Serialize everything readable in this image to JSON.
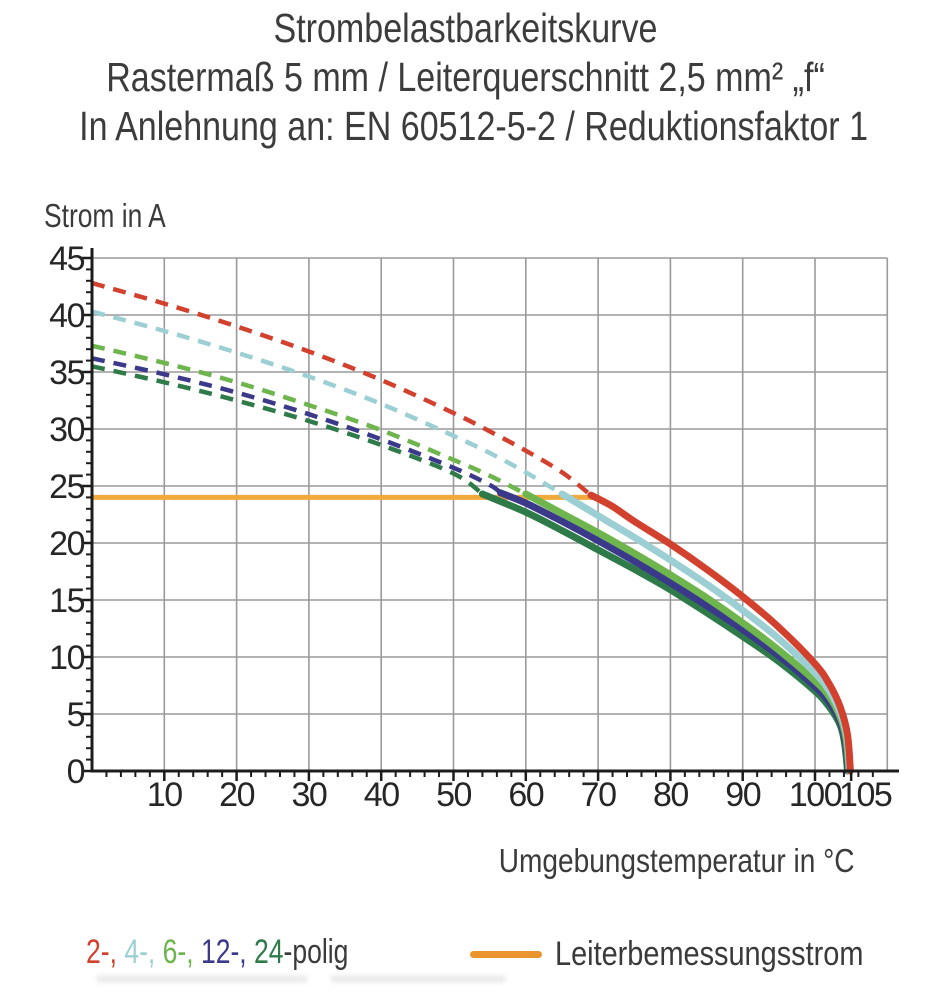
{
  "title": {
    "line1": "Strombelastbarkeitskurve",
    "line2": "Rastermaß 5 mm / Leiterquerschnitt 2,5 mm² „f“",
    "line3": "In Anlehnung an: EN 60512-5-2 / Reduktionsfaktor 1"
  },
  "chart_data": {
    "type": "line",
    "title": "Strombelastbarkeitskurve",
    "ylabel": "Strom in A",
    "xlabel": "Umgebungstemperatur in °C",
    "xlim": [
      0,
      110
    ],
    "ylim": [
      0,
      45
    ],
    "xticks": [
      10,
      20,
      30,
      40,
      50,
      60,
      70,
      80,
      90,
      100,
      105
    ],
    "yticks": [
      0,
      5,
      10,
      15,
      20,
      25,
      30,
      35,
      40,
      45
    ],
    "x_minor_step": 2,
    "y_minor_step": 1,
    "grid": true,
    "grid_color": "#9a9a9a",
    "axis_color": "#1c1c1c",
    "tick_label_color": "#262626",
    "rated_current_line": {
      "label": "Leiterbemessungsstrom",
      "value_A": 24,
      "x_start_C": 0,
      "x_end_C": 70,
      "color": "#f2a93b"
    },
    "series": [
      {
        "name": "24-polig",
        "color": "#2f7a49",
        "style": "dashed-then-solid",
        "solid_from_C": 54,
        "points": [
          [
            0,
            35.5
          ],
          [
            10,
            34.1
          ],
          [
            20,
            32.5
          ],
          [
            30,
            30.7
          ],
          [
            40,
            28.6
          ],
          [
            50,
            26.1
          ],
          [
            54,
            24.3
          ],
          [
            60,
            22.7
          ],
          [
            65,
            21.1
          ],
          [
            70,
            19.4
          ],
          [
            75,
            17.7
          ],
          [
            80,
            15.9
          ],
          [
            85,
            13.9
          ],
          [
            90,
            11.8
          ],
          [
            95,
            9.6
          ],
          [
            100,
            7.0
          ],
          [
            102,
            5.6
          ],
          [
            103.5,
            4.0
          ],
          [
            104.1,
            2.4
          ],
          [
            104.5,
            0
          ]
        ]
      },
      {
        "name": "12-polig",
        "color": "#3b3a8a",
        "style": "dashed-then-solid",
        "solid_from_C": 56.5,
        "points": [
          [
            0,
            36.2
          ],
          [
            10,
            34.8
          ],
          [
            20,
            33.2
          ],
          [
            30,
            31.3
          ],
          [
            40,
            29.1
          ],
          [
            50,
            26.6
          ],
          [
            55,
            25.1
          ],
          [
            56.5,
            24.4
          ],
          [
            60,
            23.5
          ],
          [
            65,
            21.9
          ],
          [
            70,
            20.2
          ],
          [
            75,
            18.4
          ],
          [
            80,
            16.5
          ],
          [
            85,
            14.5
          ],
          [
            90,
            12.4
          ],
          [
            95,
            10.1
          ],
          [
            100,
            7.4
          ],
          [
            102,
            6.0
          ],
          [
            103.5,
            4.3
          ],
          [
            104.2,
            2.6
          ],
          [
            104.6,
            0
          ]
        ]
      },
      {
        "name": "6-polig",
        "color": "#6db54c",
        "style": "dashed-then-solid",
        "solid_from_C": 60,
        "points": [
          [
            0,
            37.3
          ],
          [
            10,
            35.8
          ],
          [
            20,
            34.1
          ],
          [
            30,
            32.1
          ],
          [
            40,
            29.9
          ],
          [
            50,
            27.3
          ],
          [
            55,
            25.9
          ],
          [
            60,
            24.3
          ],
          [
            65,
            22.6
          ],
          [
            70,
            20.9
          ],
          [
            75,
            19.1
          ],
          [
            80,
            17.2
          ],
          [
            85,
            15.2
          ],
          [
            90,
            13.0
          ],
          [
            95,
            10.6
          ],
          [
            100,
            7.9
          ],
          [
            102,
            6.5
          ],
          [
            103.5,
            4.7
          ],
          [
            104.3,
            2.8
          ],
          [
            104.7,
            0
          ]
        ]
      },
      {
        "name": "4-polig",
        "color": "#9ccfd4",
        "style": "dashed-then-solid",
        "solid_from_C": 65,
        "points": [
          [
            0,
            40.3
          ],
          [
            10,
            38.6
          ],
          [
            20,
            36.7
          ],
          [
            30,
            34.6
          ],
          [
            40,
            32.2
          ],
          [
            50,
            29.4
          ],
          [
            55,
            27.9
          ],
          [
            60,
            26.2
          ],
          [
            65,
            24.3
          ],
          [
            70,
            22.4
          ],
          [
            75,
            20.5
          ],
          [
            80,
            18.5
          ],
          [
            85,
            16.4
          ],
          [
            90,
            14.1
          ],
          [
            95,
            11.6
          ],
          [
            100,
            8.6
          ],
          [
            102,
            7.0
          ],
          [
            103.5,
            5.1
          ],
          [
            104.4,
            3.0
          ],
          [
            104.8,
            0
          ]
        ]
      },
      {
        "name": "2-polig",
        "color": "#d2402e",
        "style": "dashed-then-solid",
        "solid_from_C": 69,
        "points": [
          [
            0,
            42.8
          ],
          [
            10,
            41.0
          ],
          [
            20,
            39.0
          ],
          [
            30,
            36.8
          ],
          [
            40,
            34.3
          ],
          [
            50,
            31.4
          ],
          [
            55,
            29.8
          ],
          [
            60,
            28.1
          ],
          [
            65,
            26.2
          ],
          [
            69,
            24.2
          ],
          [
            72,
            23.2
          ],
          [
            75,
            21.9
          ],
          [
            80,
            19.9
          ],
          [
            85,
            17.7
          ],
          [
            90,
            15.3
          ],
          [
            95,
            12.6
          ],
          [
            100,
            9.4
          ],
          [
            102,
            7.6
          ],
          [
            103.5,
            5.6
          ],
          [
            104.5,
            3.2
          ],
          [
            104.9,
            0
          ]
        ]
      }
    ]
  },
  "legend": {
    "poles_items": [
      {
        "text": "2-, ",
        "color": "#d2402e"
      },
      {
        "text": "4-, ",
        "color": "#9ccfd4"
      },
      {
        "text": "6-, ",
        "color": "#6db54c"
      },
      {
        "text": "12-, ",
        "color": "#3b3a8a"
      },
      {
        "text": "24",
        "color": "#2f7a49"
      },
      {
        "text": "-polig",
        "color": "#3a3a3a"
      }
    ],
    "rated": {
      "label": "Leiterbemessungsstrom",
      "swatch_color": "#ea9430"
    }
  }
}
